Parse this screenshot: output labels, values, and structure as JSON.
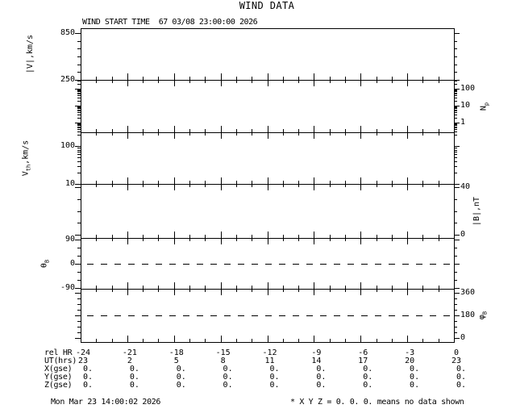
{
  "page": {
    "title": "WIND DATA"
  },
  "header": {
    "start_time": "WIND START TIME  67 03/08 23:00:00 2026"
  },
  "chart_data": {
    "type": "line",
    "title": "WIND DATA",
    "subtitle": "WIND START TIME  67 03/08 23:00:00 2026",
    "no_data_shown": true,
    "x_axis": {
      "unit": "hours relative to end time",
      "min": -24,
      "max": 0,
      "minor_step": 1,
      "major_step": 3
    },
    "panels": [
      {
        "name": "solar-wind-speed",
        "label": {
          "pre": "|V|,km/s",
          "sub": "",
          "post": ""
        },
        "side": "left",
        "scale": "linear",
        "range": [
          250,
          912
        ],
        "tick_start": 250,
        "tick_step": 100,
        "labeled_ticks": [
          {
            "value": 850,
            "label": "850"
          },
          {
            "value": 250,
            "label": "250"
          }
        ],
        "reference_line": null,
        "series": []
      },
      {
        "name": "proton-density",
        "label": {
          "pre": "N",
          "sub": "p",
          "post": ""
        },
        "side": "right",
        "scale": "log",
        "range": [
          0.27,
          333
        ],
        "labeled_ticks": [
          {
            "value": 100,
            "label": "100"
          },
          {
            "value": 10,
            "label": "10"
          },
          {
            "value": 1,
            "label": "1"
          }
        ],
        "reference_line": null,
        "series": []
      },
      {
        "name": "thermal-speed",
        "label": {
          "pre": "V",
          "sub": "th",
          "post": ",km/s"
        },
        "side": "left",
        "scale": "log",
        "range": [
          10,
          230
        ],
        "labeled_ticks": [
          {
            "value": 100,
            "label": "100"
          },
          {
            "value": 10,
            "label": "10"
          }
        ],
        "reference_line": null,
        "series": []
      },
      {
        "name": "magnetic-field-magnitude",
        "label": {
          "pre": "|B|,nT",
          "sub": "",
          "post": ""
        },
        "side": "right",
        "scale": "linear",
        "range": [
          -2.7,
          42.7
        ],
        "tick_start": 0,
        "tick_step": 10,
        "labeled_ticks": [
          {
            "value": 40,
            "label": "40"
          },
          {
            "value": 0,
            "label": "0"
          }
        ],
        "reference_line": null,
        "series": []
      },
      {
        "name": "field-latitude-angle",
        "label": {
          "pre": "θ",
          "sub": "B",
          "post": ""
        },
        "side": "left",
        "scale": "linear",
        "range": [
          -93,
          96
        ],
        "tick_start": -90,
        "tick_step": 30,
        "labeled_ticks": [
          {
            "value": 90,
            "label": "90"
          },
          {
            "value": 0,
            "label": "0"
          },
          {
            "value": -90,
            "label": "-90"
          }
        ],
        "reference_line": 0,
        "series": []
      },
      {
        "name": "field-azimuth-angle",
        "label": {
          "pre": "φ",
          "sub": "B",
          "post": ""
        },
        "side": "right",
        "scale": "linear",
        "range": [
          -32,
          392
        ],
        "tick_start": 0,
        "tick_step": 45,
        "labeled_ticks": [
          {
            "value": 360,
            "label": "360"
          },
          {
            "value": 180,
            "label": "180"
          },
          {
            "value": 0,
            "label": "0"
          }
        ],
        "reference_line": 180,
        "series": []
      }
    ]
  },
  "bottom_table": {
    "rows": [
      {
        "label": "rel HR",
        "align": "center",
        "values": [
          "-24",
          "-21",
          "-18",
          "-15",
          "-12",
          "-9",
          "-6",
          "-3",
          "0"
        ]
      },
      {
        "label": "UT(hrs)",
        "align": "center",
        "values": [
          "23",
          "2",
          "5",
          "8",
          "11",
          "14",
          "17",
          "20",
          "23"
        ]
      },
      {
        "label": "X(gse)",
        "align": "right",
        "values": [
          "0.",
          "0.",
          "0.",
          "0.",
          "0.",
          "0.",
          "0.",
          "0.",
          "0."
        ]
      },
      {
        "label": "Y(gse)",
        "align": "right",
        "values": [
          "0.",
          "0.",
          "0.",
          "0.",
          "0.",
          "0.",
          "0.",
          "0.",
          "0."
        ]
      },
      {
        "label": "Z(gse)",
        "align": "right",
        "values": [
          "0.",
          "0.",
          "0.",
          "0.",
          "0.",
          "0.",
          "0.",
          "0.",
          "0."
        ]
      }
    ]
  },
  "footer": {
    "timestamp": "Mon Mar 23 14:00:02 2026",
    "note": "* X Y Z = 0. 0. 0. means no data shown"
  },
  "colors": {
    "foreground": "#000000",
    "background": "#ffffff"
  }
}
